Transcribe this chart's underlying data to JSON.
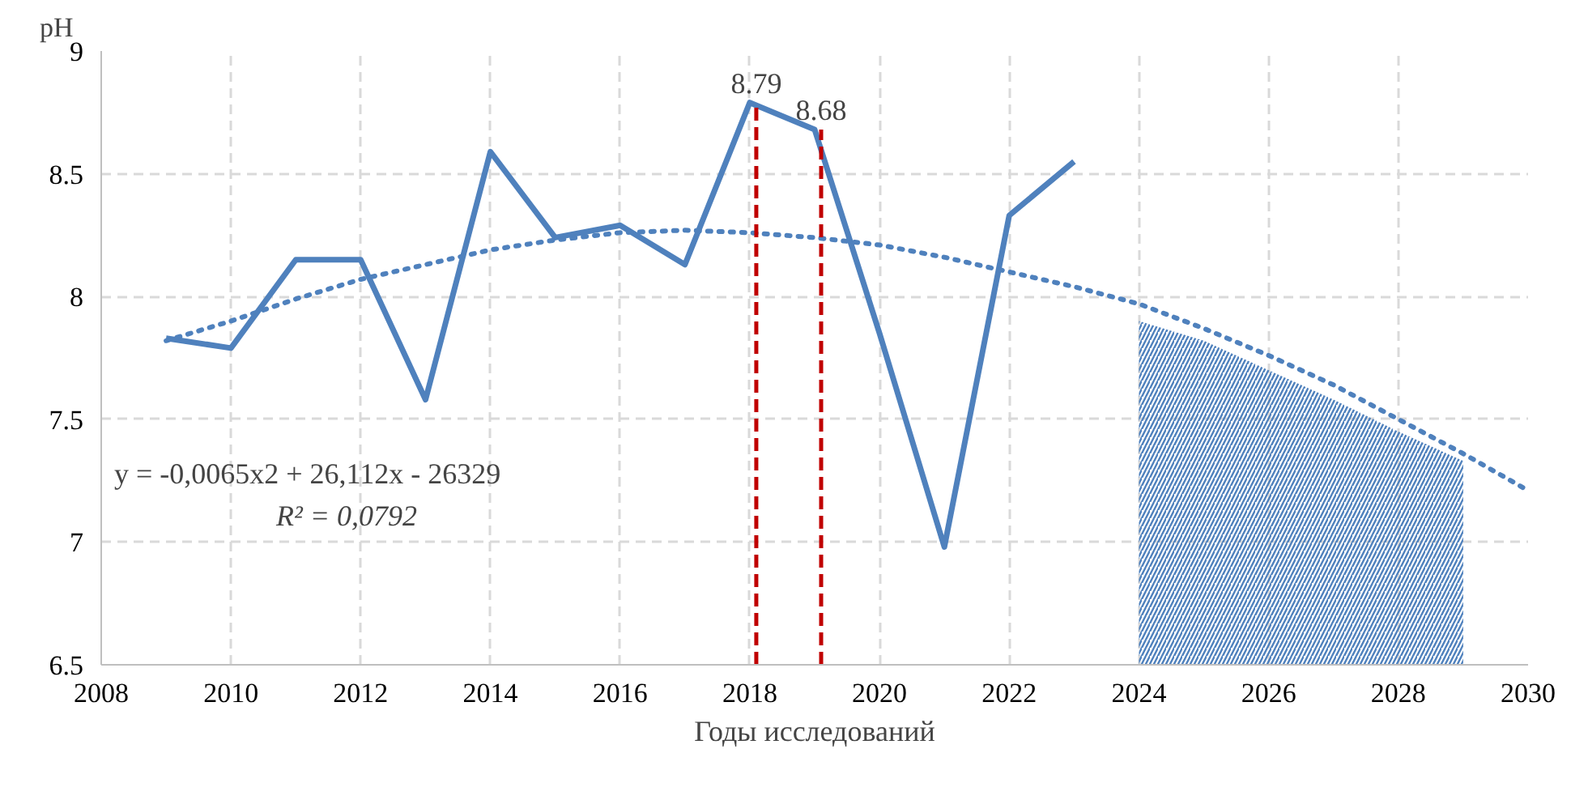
{
  "chart_data": {
    "type": "line",
    "xlabel": "Годы исследований",
    "ylabel": "pH",
    "xlim": [
      2008,
      2030
    ],
    "xticks": [
      2008,
      2010,
      2012,
      2014,
      2016,
      2018,
      2020,
      2022,
      2024,
      2026,
      2028,
      2030
    ],
    "ylim": [
      6.5,
      9
    ],
    "yticks": [
      {
        "value": 6.5,
        "label": "6.5"
      },
      {
        "value": 7,
        "label": "7"
      },
      {
        "value": 7.5,
        "label": "7.5"
      },
      {
        "value": 8,
        "label": "8"
      },
      {
        "value": 8.5,
        "label": "8.5"
      },
      {
        "value": 9,
        "label": "9"
      }
    ],
    "grid": true,
    "series": [
      {
        "color": "#4f81bd",
        "line_style": "solid",
        "x": [
          2009,
          2010,
          2011,
          2012,
          2013,
          2014,
          2015,
          2016,
          2017,
          2018,
          2019,
          2020,
          2021,
          2022,
          2023
        ],
        "values": [
          7.83,
          7.79,
          8.15,
          8.15,
          7.58,
          8.59,
          8.24,
          8.29,
          8.13,
          8.79,
          8.68,
          7.85,
          6.98,
          8.33,
          8.55
        ]
      },
      {
        "type": "line",
        "color": "#4f81bd",
        "line_style": "dotted",
        "x": [
          2009,
          2010,
          2011,
          2012,
          2013,
          2014,
          2015,
          2016,
          2017,
          2018,
          2019,
          2020,
          2021,
          2022,
          2023,
          2024,
          2025,
          2026,
          2027,
          2028,
          2029,
          2030
        ],
        "values": [
          7.82,
          7.9,
          7.99,
          8.07,
          8.13,
          8.19,
          8.23,
          8.26,
          8.27,
          8.26,
          8.24,
          8.21,
          8.16,
          8.1,
          8.04,
          7.97,
          7.87,
          7.76,
          7.64,
          7.5,
          7.36,
          7.21
        ]
      },
      {
        "type": "area",
        "color": "#4f81bd",
        "x": [
          2024,
          2025,
          2026,
          2027,
          2028,
          2029
        ],
        "values": [
          7.9,
          7.82,
          7.7,
          7.58,
          7.45,
          7.33
        ]
      },
      {
        "type": "line",
        "color": "#c00000",
        "line_style": "dashed",
        "x": [
          2018.1,
          2018.1
        ],
        "values": [
          6.5,
          8.79
        ]
      },
      {
        "type": "line",
        "color": "#c00000",
        "line_style": "dashed",
        "x": [
          2019.1,
          2019.1
        ],
        "values": [
          6.5,
          8.68
        ]
      }
    ],
    "annotations": [
      {
        "text": "8.79",
        "x": 2018.1,
        "y": 8.79
      },
      {
        "text": "8.68",
        "x": 2019.1,
        "y": 8.68
      },
      "y = -0,0065x2 + 26,112x - 26329",
      "R² = 0,0792"
    ]
  }
}
